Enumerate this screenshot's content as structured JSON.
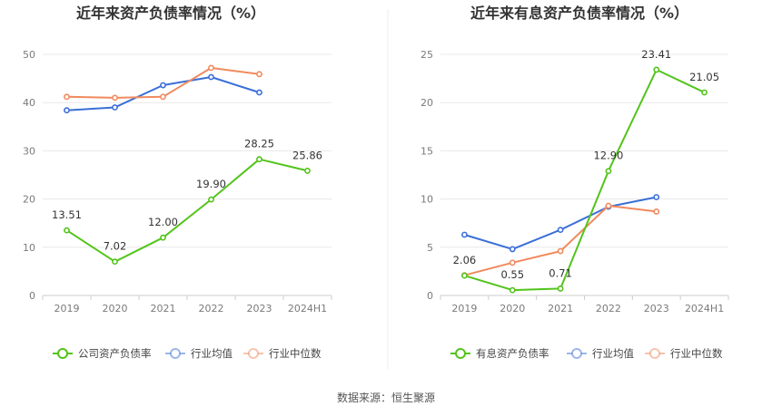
{
  "source_label": "数据来源：恒生聚源",
  "colors": {
    "company": "#52c41a",
    "industry_avg": "#3a6fd8",
    "industry_median": "#f08a5d",
    "grid": "#e8e8e8",
    "axis": "#cccccc",
    "divider": "#eeeeee"
  },
  "chart_data": [
    {
      "type": "line",
      "title": "近年来资产负债率情况（%）",
      "xlabel": "",
      "ylabel": "",
      "categories": [
        "2019",
        "2020",
        "2021",
        "2022",
        "2023",
        "2024H1"
      ],
      "ylim": [
        0,
        50
      ],
      "yticks": [
        0,
        10,
        20,
        30,
        40,
        50
      ],
      "grid": true,
      "legend_position": "bottom",
      "series": [
        {
          "name": "公司资产负债率",
          "values": [
            13.51,
            7.02,
            12.0,
            19.9,
            28.25,
            25.86
          ],
          "labels": [
            "13.51",
            "7.02",
            "12.00",
            "19.90",
            "28.25",
            "25.86"
          ]
        },
        {
          "name": "行业均值",
          "values": [
            38.4,
            39.0,
            43.6,
            45.3,
            42.1,
            null
          ]
        },
        {
          "name": "行业中位数",
          "values": [
            41.2,
            41.0,
            41.2,
            47.2,
            45.9,
            null
          ]
        }
      ]
    },
    {
      "type": "line",
      "title": "近年来有息资产负债率情况（%）",
      "xlabel": "",
      "ylabel": "",
      "categories": [
        "2019",
        "2020",
        "2021",
        "2022",
        "2023",
        "2024H1"
      ],
      "ylim": [
        0,
        25
      ],
      "yticks": [
        0,
        5,
        10,
        15,
        20,
        25
      ],
      "grid": true,
      "legend_position": "bottom",
      "series": [
        {
          "name": "有息资产负债率",
          "values": [
            2.06,
            0.55,
            0.71,
            12.9,
            23.41,
            21.05
          ],
          "labels": [
            "2.06",
            "0.55",
            "0.71",
            "12.90",
            "23.41",
            "21.05"
          ]
        },
        {
          "name": "行业均值",
          "values": [
            6.3,
            4.8,
            6.8,
            9.2,
            10.2,
            null
          ]
        },
        {
          "name": "行业中位数",
          "values": [
            2.1,
            3.4,
            4.6,
            9.3,
            8.7,
            null
          ]
        }
      ]
    }
  ]
}
